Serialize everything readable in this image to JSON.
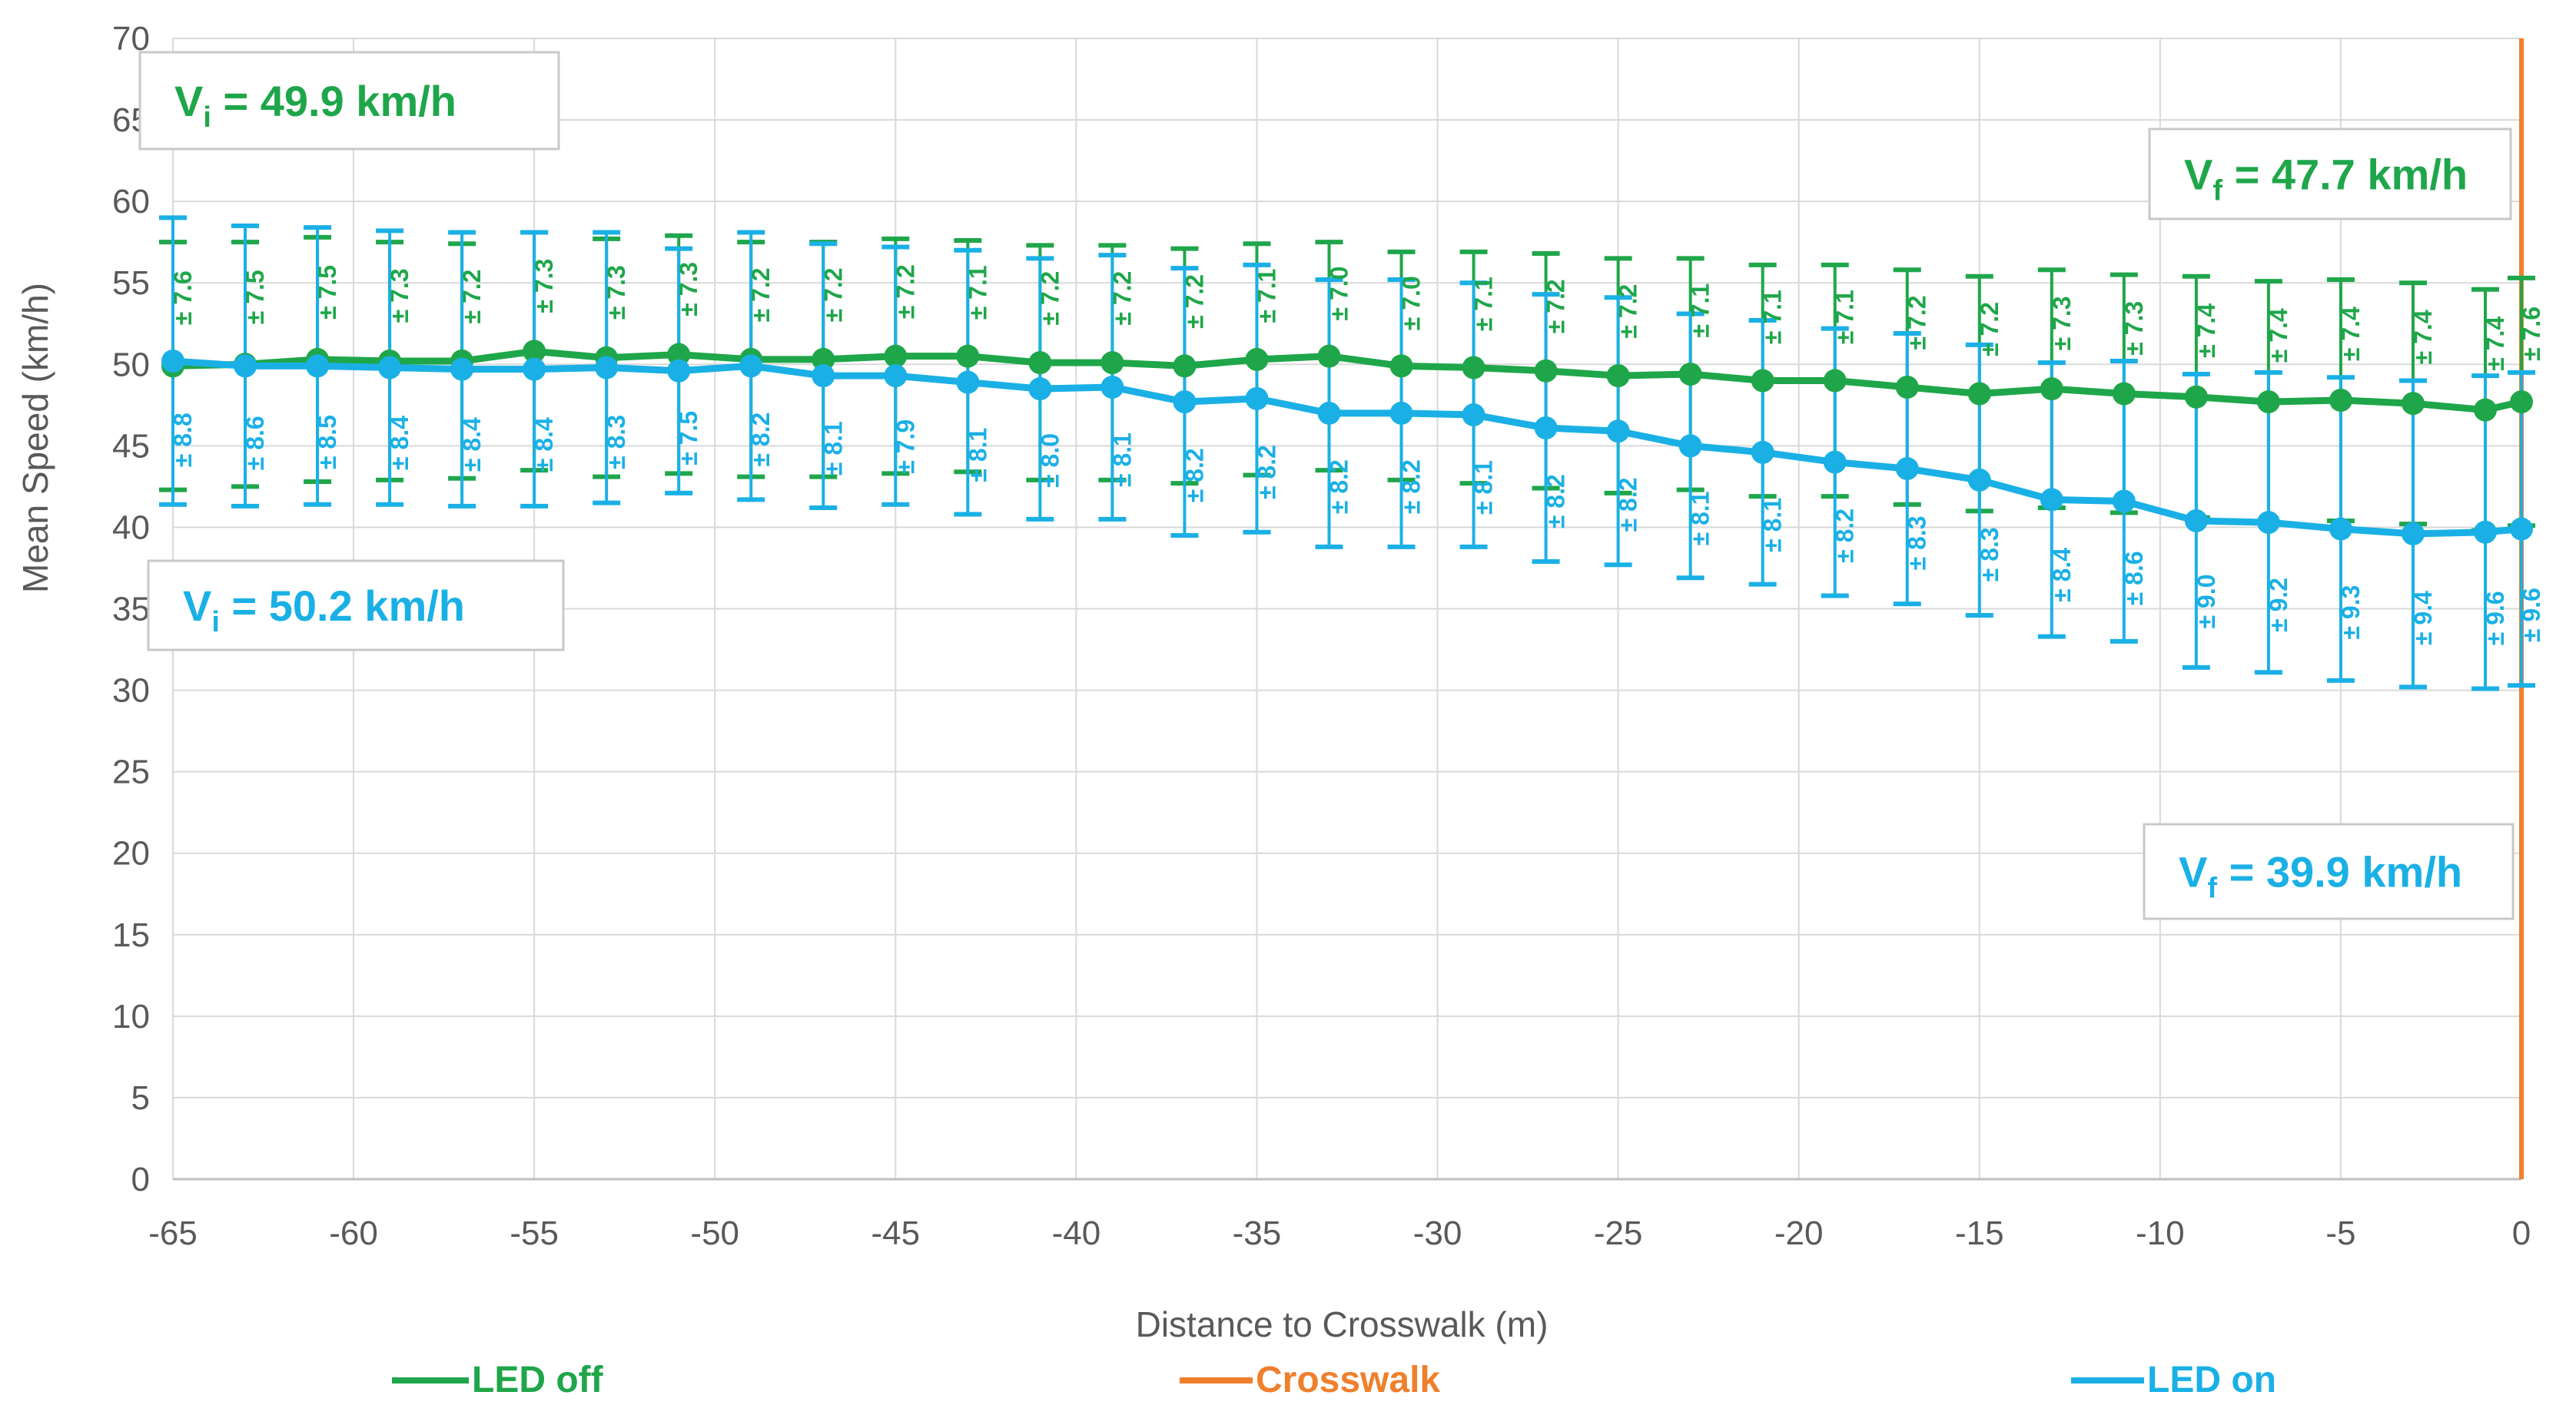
{
  "chart_data": {
    "type": "line",
    "title": "",
    "xlabel": "Distance to Crosswalk (m)",
    "ylabel": "Mean Speed (km/h)",
    "xlim": [
      -65,
      0
    ],
    "ylim": [
      0,
      70
    ],
    "x_ticks": [
      -65,
      -60,
      -55,
      -50,
      -45,
      -40,
      -35,
      -30,
      -25,
      -20,
      -15,
      -10,
      -5,
      0
    ],
    "y_ticks": [
      0,
      5,
      10,
      15,
      20,
      25,
      30,
      35,
      40,
      45,
      50,
      55,
      60,
      65,
      70
    ],
    "grid": "both",
    "legend_position": "bottom",
    "x": [
      -65,
      -63,
      -61,
      -59,
      -57,
      -55,
      -53,
      -51,
      -49,
      -47,
      -45,
      -43,
      -41,
      -39,
      -37,
      -35,
      -33,
      -31,
      -29,
      -27,
      -25,
      -23,
      -21,
      -19,
      -17,
      -15,
      -13,
      -11,
      -9,
      -7,
      -5,
      -3,
      -1,
      0
    ],
    "series": [
      {
        "name": "LED off",
        "color": "#1fa64a",
        "values": [
          49.9,
          50.0,
          50.3,
          50.2,
          50.2,
          50.8,
          50.4,
          50.6,
          50.3,
          50.3,
          50.5,
          50.5,
          50.1,
          50.1,
          49.9,
          50.3,
          50.5,
          49.9,
          49.8,
          49.6,
          49.3,
          49.4,
          49.0,
          49.0,
          48.6,
          48.2,
          48.5,
          48.2,
          48.0,
          47.7,
          47.8,
          47.6,
          47.2,
          47.7
        ],
        "error": [
          "± 7.6",
          "± 7.5",
          "± 7.5",
          "± 7.3",
          "± 7.2",
          "± 7.3",
          "± 7.3",
          "± 7.3",
          "± 7.2",
          "± 7.2",
          "± 7.2",
          "± 7.1",
          "± 7.2",
          "± 7.2",
          "± 7.2",
          "± 7.1",
          "± 7.0",
          "± 7.0",
          "± 7.1",
          "± 7.2",
          "± 7.2",
          "± 7.1",
          "± 7.1",
          "± 7.1",
          "± 7.2",
          "± 7.2",
          "± 7.3",
          "± 7.3",
          "± 7.4",
          "± 7.4",
          "± 7.4",
          "± 7.4",
          "± 7.4",
          "± 7.6"
        ]
      },
      {
        "name": "LED on",
        "color": "#1ab0e6",
        "values": [
          50.2,
          49.9,
          49.9,
          49.8,
          49.7,
          49.7,
          49.8,
          49.6,
          49.9,
          49.3,
          49.3,
          48.9,
          48.5,
          48.6,
          47.7,
          47.9,
          47.0,
          47.0,
          46.9,
          46.1,
          45.9,
          45.0,
          44.6,
          44.0,
          43.6,
          42.9,
          41.7,
          41.6,
          40.4,
          40.3,
          39.9,
          39.6,
          39.7,
          39.9
        ],
        "error": [
          "± 8.8",
          "± 8.6",
          "± 8.5",
          "± 8.4",
          "± 8.4",
          "± 8.4",
          "± 8.3",
          "± 7.5",
          "± 8.2",
          "± 8.1",
          "± 7.9",
          "± 8.1",
          "± 8.0",
          "± 8.1",
          "± 8.2",
          "± 8.2",
          "± 8.2",
          "± 8.2",
          "± 8.1",
          "± 8.2",
          "± 8.2",
          "± 8.1",
          "± 8.1",
          "± 8.2",
          "± 8.3",
          "± 8.3",
          "± 8.4",
          "± 8.6",
          "± 9.0",
          "± 9.2",
          "± 9.3",
          "± 9.4",
          "± 9.6",
          "± 9.6"
        ]
      },
      {
        "name": "Crosswalk",
        "color": "#f07f2c",
        "x_position": 0
      }
    ],
    "annotations": [
      {
        "main": "V",
        "sub": "i",
        "rest": " = 49.9 km/h",
        "series": "LED off"
      },
      {
        "main": "V",
        "sub": "f",
        "rest": " = 47.7 km/h",
        "series": "LED off"
      },
      {
        "main": "V",
        "sub": "i",
        "rest": " = 50.2 km/h",
        "series": "LED on"
      },
      {
        "main": "V",
        "sub": "f",
        "rest": " = 39.9 km/h",
        "series": "LED on"
      }
    ]
  }
}
